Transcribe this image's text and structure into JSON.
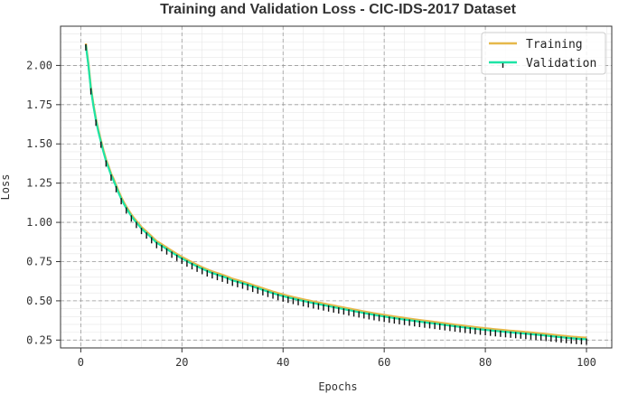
{
  "chart_data": {
    "type": "line",
    "title": "Training and Validation Loss - CIC-IDS-2017 Dataset",
    "xlabel": "Epochs",
    "ylabel": "Loss",
    "xlim": [
      -4,
      105
    ],
    "ylim": [
      0.2,
      2.25
    ],
    "xticks": [
      0,
      20,
      40,
      60,
      80,
      100
    ],
    "yticks": [
      0.25,
      0.5,
      0.75,
      1.0,
      1.25,
      1.5,
      1.75,
      2.0
    ],
    "ytick_labels": [
      "0.25",
      "0.50",
      "0.75",
      "1.00",
      "1.25",
      "1.50",
      "1.75",
      "2.00"
    ],
    "grid": true,
    "legend_position": "top-right",
    "x": [
      1,
      2,
      3,
      4,
      5,
      6,
      8,
      10,
      12,
      15,
      20,
      25,
      30,
      40,
      50,
      60,
      70,
      80,
      90,
      100
    ],
    "series": [
      {
        "name": "Training",
        "color": "#e6b84a",
        "values": [
          2.14,
          1.86,
          1.66,
          1.52,
          1.4,
          1.31,
          1.16,
          1.05,
          0.97,
          0.88,
          0.78,
          0.7,
          0.64,
          0.54,
          0.47,
          0.41,
          0.365,
          0.325,
          0.295,
          0.265
        ]
      },
      {
        "name": "Validation",
        "color": "#1de4a6",
        "values": [
          2.13,
          1.85,
          1.65,
          1.51,
          1.39,
          1.3,
          1.15,
          1.04,
          0.96,
          0.87,
          0.77,
          0.69,
          0.63,
          0.53,
          0.46,
          0.4,
          0.355,
          0.315,
          0.285,
          0.255
        ],
        "error_bars": {
          "color": "#111111",
          "lower_offset": 0.035,
          "upper_offset": 0.005
        }
      }
    ]
  }
}
